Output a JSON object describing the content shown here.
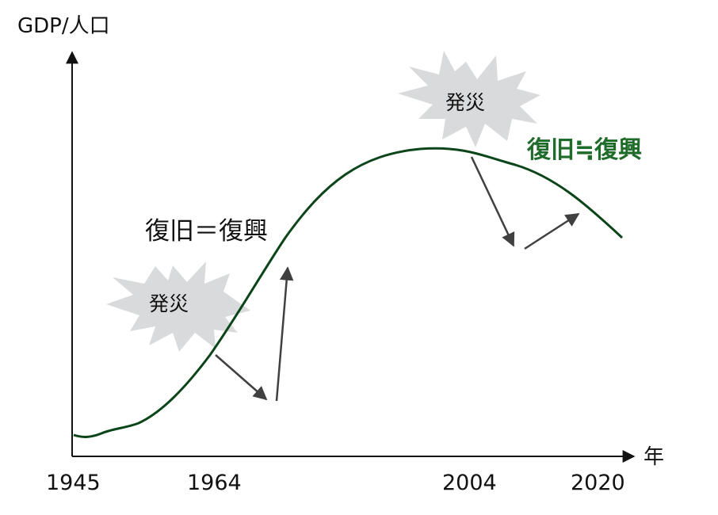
{
  "axes": {
    "y_label": "GDP/人口",
    "x_label": "年",
    "x_ticks": [
      "1945",
      "1964",
      "2004",
      "2020"
    ]
  },
  "annotations": {
    "disaster_1": "発災",
    "disaster_2": "発災",
    "recovery_equal": "復旧＝復興",
    "recovery_approx": "復旧≒復興"
  },
  "colors": {
    "curve": "#0b4519",
    "approx_text": "#1f6b2a",
    "burst": "#d9dadb",
    "arrow": "#404040",
    "axis": "#111111"
  }
}
